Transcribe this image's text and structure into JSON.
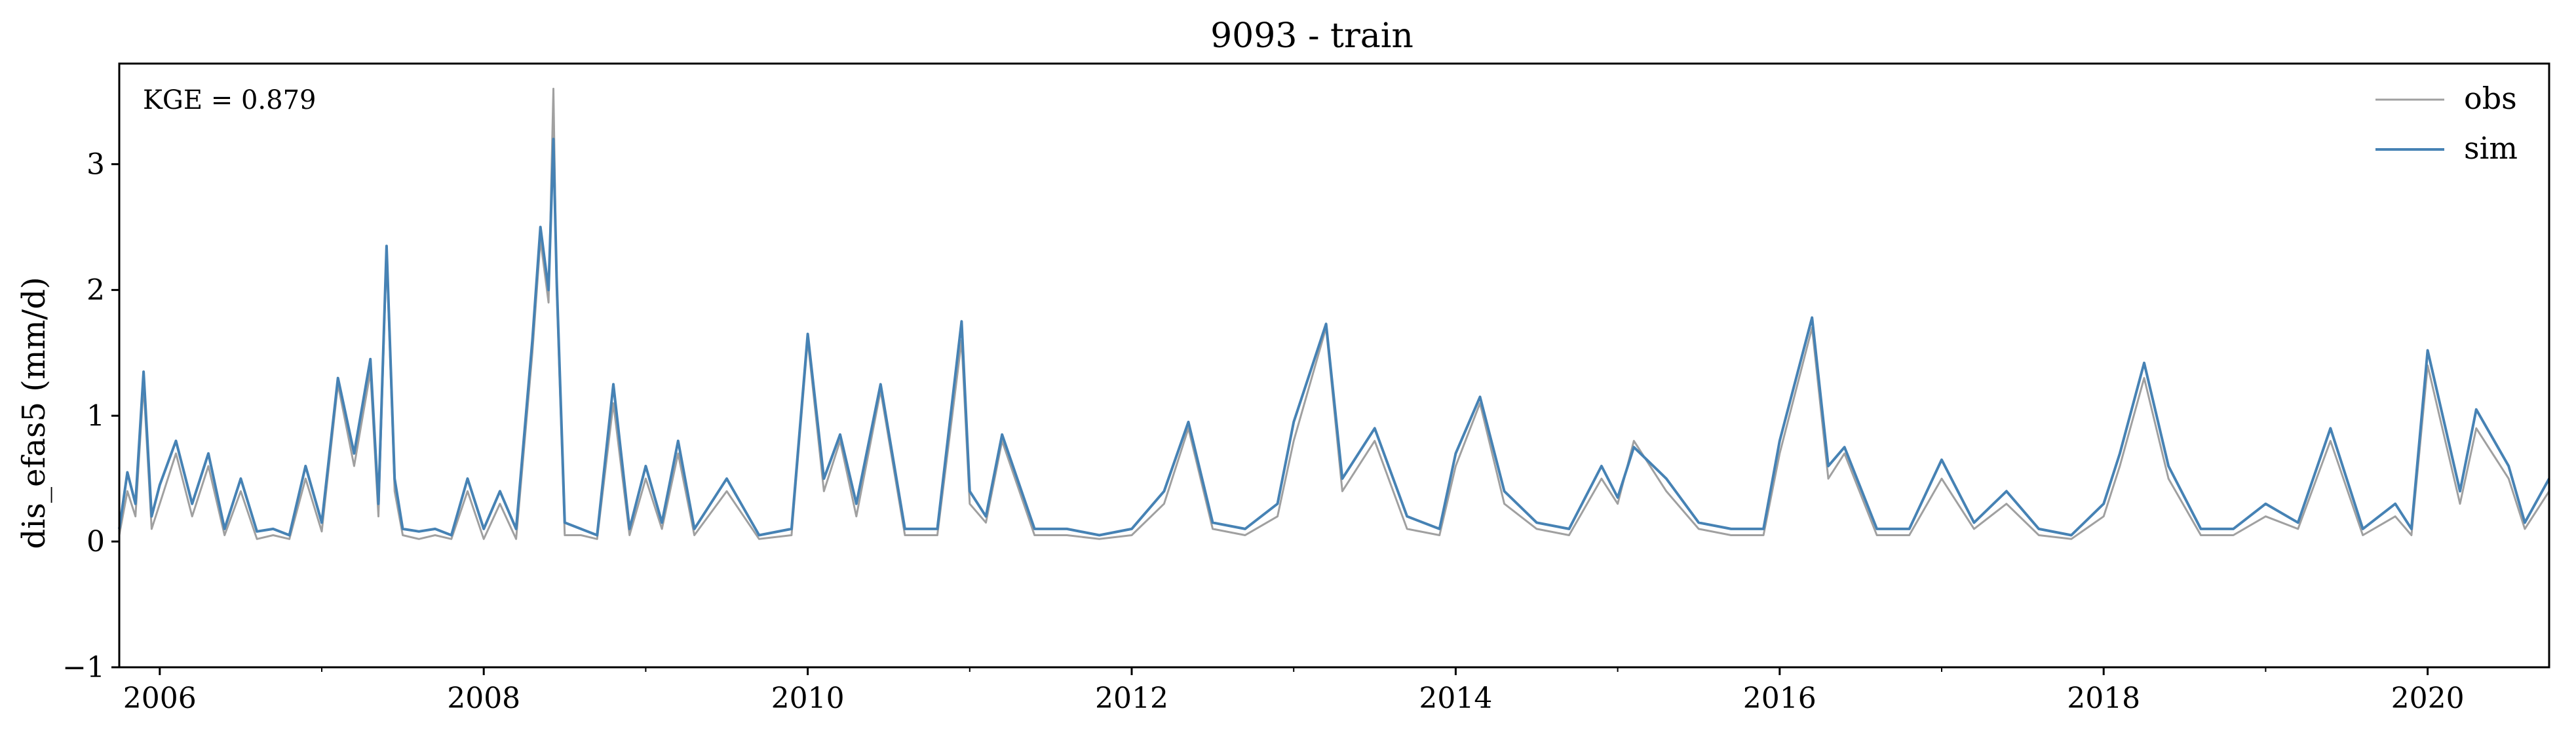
{
  "chart_data": {
    "type": "line",
    "title": "9093 - train",
    "xlabel": "",
    "ylabel": "dis_efas5 (mm/d)",
    "ylim": [
      -1,
      3.8
    ],
    "xlim": [
      2005.75,
      2020.75
    ],
    "yticks": [
      {
        "value": -1,
        "label": "−1"
      },
      {
        "value": 0,
        "label": "0"
      },
      {
        "value": 1,
        "label": "1"
      },
      {
        "value": 2,
        "label": "2"
      },
      {
        "value": 3,
        "label": "3"
      }
    ],
    "xticks": [
      {
        "value": 2006,
        "label": "2006"
      },
      {
        "value": 2008,
        "label": "2008"
      },
      {
        "value": 2010,
        "label": "2010"
      },
      {
        "value": 2012,
        "label": "2012"
      },
      {
        "value": 2014,
        "label": "2014"
      },
      {
        "value": 2016,
        "label": "2016"
      },
      {
        "value": 2018,
        "label": "2018"
      },
      {
        "value": 2020,
        "label": "2020"
      }
    ],
    "minor_xticks": [
      2007,
      2009,
      2011,
      2013,
      2015,
      2017,
      2019
    ],
    "annotation": "KGE = 0.879",
    "legend_position": "top-right",
    "grid": false,
    "series": [
      {
        "name": "obs",
        "color": "#a0a0a0",
        "x": [
          2005.75,
          2005.8,
          2005.85,
          2005.9,
          2005.95,
          2006.0,
          2006.1,
          2006.2,
          2006.3,
          2006.4,
          2006.5,
          2006.6,
          2006.7,
          2006.8,
          2006.9,
          2007.0,
          2007.1,
          2007.2,
          2007.3,
          2007.35,
          2007.4,
          2007.45,
          2007.5,
          2007.6,
          2007.7,
          2007.8,
          2007.9,
          2008.0,
          2008.1,
          2008.2,
          2008.3,
          2008.35,
          2008.4,
          2008.43,
          2008.45,
          2008.5,
          2008.6,
          2008.7,
          2008.8,
          2008.9,
          2009.0,
          2009.1,
          2009.2,
          2009.3,
          2009.5,
          2009.7,
          2009.9,
          2010.0,
          2010.1,
          2010.2,
          2010.3,
          2010.45,
          2010.6,
          2010.8,
          2010.95,
          2011.0,
          2011.1,
          2011.2,
          2011.4,
          2011.6,
          2011.8,
          2012.0,
          2012.2,
          2012.35,
          2012.5,
          2012.7,
          2012.9,
          2013.0,
          2013.2,
          2013.3,
          2013.5,
          2013.7,
          2013.9,
          2014.0,
          2014.15,
          2014.3,
          2014.5,
          2014.7,
          2014.9,
          2015.0,
          2015.1,
          2015.3,
          2015.5,
          2015.7,
          2015.9,
          2016.0,
          2016.2,
          2016.3,
          2016.4,
          2016.6,
          2016.8,
          2017.0,
          2017.2,
          2017.4,
          2017.6,
          2017.8,
          2018.0,
          2018.1,
          2018.25,
          2018.4,
          2018.6,
          2018.8,
          2019.0,
          2019.2,
          2019.4,
          2019.6,
          2019.8,
          2019.9,
          2020.0,
          2020.2,
          2020.3,
          2020.5,
          2020.6,
          2020.75
        ],
        "y": [
          0.05,
          0.4,
          0.2,
          1.25,
          0.1,
          0.3,
          0.7,
          0.2,
          0.6,
          0.05,
          0.4,
          0.02,
          0.05,
          0.02,
          0.5,
          0.08,
          1.25,
          0.6,
          1.35,
          0.2,
          2.3,
          0.4,
          0.05,
          0.02,
          0.05,
          0.02,
          0.4,
          0.02,
          0.3,
          0.02,
          1.5,
          2.4,
          1.9,
          3.6,
          2.0,
          0.05,
          0.05,
          0.02,
          1.1,
          0.05,
          0.5,
          0.1,
          0.7,
          0.05,
          0.4,
          0.02,
          0.05,
          1.6,
          0.4,
          0.8,
          0.2,
          1.2,
          0.05,
          0.05,
          1.6,
          0.3,
          0.15,
          0.8,
          0.05,
          0.05,
          0.02,
          0.05,
          0.3,
          0.9,
          0.1,
          0.05,
          0.2,
          0.8,
          1.7,
          0.4,
          0.8,
          0.1,
          0.05,
          0.6,
          1.1,
          0.3,
          0.1,
          0.05,
          0.5,
          0.3,
          0.8,
          0.4,
          0.1,
          0.05,
          0.05,
          0.7,
          1.7,
          0.5,
          0.7,
          0.05,
          0.05,
          0.5,
          0.1,
          0.3,
          0.05,
          0.02,
          0.2,
          0.6,
          1.3,
          0.5,
          0.05,
          0.05,
          0.2,
          0.1,
          0.8,
          0.05,
          0.2,
          0.05,
          1.4,
          0.3,
          0.9,
          0.5,
          0.1,
          0.4
        ]
      },
      {
        "name": "sim",
        "color": "#4682b4",
        "x": [
          2005.75,
          2005.8,
          2005.85,
          2005.9,
          2005.95,
          2006.0,
          2006.1,
          2006.2,
          2006.3,
          2006.4,
          2006.5,
          2006.6,
          2006.7,
          2006.8,
          2006.9,
          2007.0,
          2007.1,
          2007.2,
          2007.3,
          2007.35,
          2007.4,
          2007.45,
          2007.5,
          2007.6,
          2007.7,
          2007.8,
          2007.9,
          2008.0,
          2008.1,
          2008.2,
          2008.3,
          2008.35,
          2008.4,
          2008.43,
          2008.45,
          2008.5,
          2008.6,
          2008.7,
          2008.8,
          2008.9,
          2009.0,
          2009.1,
          2009.2,
          2009.3,
          2009.5,
          2009.7,
          2009.9,
          2010.0,
          2010.1,
          2010.2,
          2010.3,
          2010.45,
          2010.6,
          2010.8,
          2010.95,
          2011.0,
          2011.1,
          2011.2,
          2011.4,
          2011.6,
          2011.8,
          2012.0,
          2012.2,
          2012.35,
          2012.5,
          2012.7,
          2012.9,
          2013.0,
          2013.2,
          2013.3,
          2013.5,
          2013.7,
          2013.9,
          2014.0,
          2014.15,
          2014.3,
          2014.5,
          2014.7,
          2014.9,
          2015.0,
          2015.1,
          2015.3,
          2015.5,
          2015.7,
          2015.9,
          2016.0,
          2016.2,
          2016.3,
          2016.4,
          2016.6,
          2016.8,
          2017.0,
          2017.2,
          2017.4,
          2017.6,
          2017.8,
          2018.0,
          2018.1,
          2018.25,
          2018.4,
          2018.6,
          2018.8,
          2019.0,
          2019.2,
          2019.4,
          2019.6,
          2019.8,
          2019.9,
          2020.0,
          2020.2,
          2020.3,
          2020.5,
          2020.6,
          2020.75
        ],
        "y": [
          0.1,
          0.55,
          0.3,
          1.35,
          0.2,
          0.45,
          0.8,
          0.3,
          0.7,
          0.1,
          0.5,
          0.08,
          0.1,
          0.05,
          0.6,
          0.15,
          1.3,
          0.7,
          1.45,
          0.3,
          2.35,
          0.5,
          0.1,
          0.08,
          0.1,
          0.05,
          0.5,
          0.1,
          0.4,
          0.1,
          1.6,
          2.5,
          2.0,
          3.2,
          2.1,
          0.15,
          0.1,
          0.05,
          1.25,
          0.1,
          0.6,
          0.15,
          0.8,
          0.1,
          0.5,
          0.05,
          0.1,
          1.65,
          0.5,
          0.85,
          0.3,
          1.25,
          0.1,
          0.1,
          1.75,
          0.4,
          0.2,
          0.85,
          0.1,
          0.1,
          0.05,
          0.1,
          0.4,
          0.95,
          0.15,
          0.1,
          0.3,
          0.95,
          1.73,
          0.5,
          0.9,
          0.2,
          0.1,
          0.7,
          1.15,
          0.4,
          0.15,
          0.1,
          0.6,
          0.35,
          0.75,
          0.5,
          0.15,
          0.1,
          0.1,
          0.8,
          1.78,
          0.6,
          0.75,
          0.1,
          0.1,
          0.65,
          0.15,
          0.4,
          0.1,
          0.05,
          0.3,
          0.7,
          1.42,
          0.6,
          0.1,
          0.1,
          0.3,
          0.15,
          0.9,
          0.1,
          0.3,
          0.1,
          1.52,
          0.4,
          1.05,
          0.6,
          0.15,
          0.5
        ]
      }
    ]
  }
}
